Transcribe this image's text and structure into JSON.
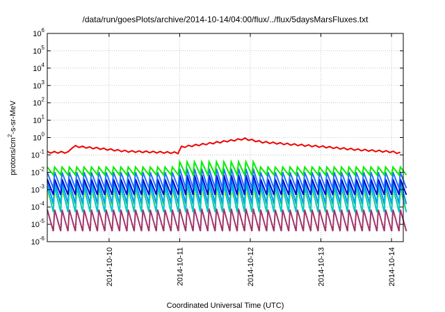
{
  "chart_data": {
    "type": "line",
    "title": "/data/run/goesPlots/archive/2014-10-14/04:00/flux/../flux/5daysMarsFluxes.txt",
    "xlabel": "Coordinated Universal Time (UTC)",
    "ylabel_parts": {
      "pre": "protons/cm",
      "sup": "2",
      "post": "-s-sr-MeV"
    },
    "y_scale": "log",
    "ylim": [
      1e-06,
      1000000.0
    ],
    "y_ticks": [
      {
        "value": 1e-06,
        "base": "10",
        "exp": "-6"
      },
      {
        "value": 1e-05,
        "base": "10",
        "exp": "-5"
      },
      {
        "value": 0.0001,
        "base": "10",
        "exp": "-4"
      },
      {
        "value": 0.001,
        "base": "10",
        "exp": "-3"
      },
      {
        "value": 0.01,
        "base": "10",
        "exp": "-2"
      },
      {
        "value": 0.1,
        "base": "10",
        "exp": "-1"
      },
      {
        "value": 1,
        "base": "10",
        "exp": "0"
      },
      {
        "value": 10,
        "base": "10",
        "exp": "1"
      },
      {
        "value": 100,
        "base": "10",
        "exp": "2"
      },
      {
        "value": 1000,
        "base": "10",
        "exp": "3"
      },
      {
        "value": 10000,
        "base": "10",
        "exp": "4"
      },
      {
        "value": 100000,
        "base": "10",
        "exp": "5"
      },
      {
        "value": 1000000,
        "base": "10",
        "exp": "6"
      }
    ],
    "x_start": "2014-10-09 03:00",
    "x_end": "2014-10-14 04:00",
    "x_ticks": [
      "2014-10-10",
      "2014-10-11",
      "2014-10-12",
      "2014-10-13",
      "2014-10-14"
    ],
    "grid": true,
    "legend": "none",
    "series": [
      {
        "color": "#a0346a",
        "low": 4e-06,
        "high": 7e-05,
        "high_after": 8e-05,
        "sawtooth": true
      },
      {
        "color": "#ffff00",
        "low": 0.00013,
        "high": 0.0006,
        "high_after": 0.0007,
        "sawtooth": true
      },
      {
        "color": "#0090ff",
        "low": 0.00015,
        "high": 0.003,
        "high_after": 0.004,
        "sawtooth": true
      },
      {
        "color": "#00c8c8",
        "low": 5e-05,
        "high": 0.0015,
        "high_after": 0.002,
        "sawtooth": true
      },
      {
        "color": "#0000d0",
        "low": 0.0005,
        "high": 0.004,
        "high_after": 0.007,
        "sawtooth": true
      },
      {
        "color": "#1e6fff",
        "low": 0.0012,
        "high": 0.01,
        "high_after": 0.016,
        "sawtooth": true
      },
      {
        "color": "#00ee00",
        "low": 0.007,
        "high": 0.02,
        "high_after": 0.04,
        "sawtooth": true
      },
      {
        "color": "#ee0000",
        "sawtooth": false,
        "points": [
          [
            "2014-10-09 03:00",
            0.13
          ],
          [
            "2014-10-09 08:00",
            0.16
          ],
          [
            "2014-10-09 11:00",
            0.13
          ],
          [
            "2014-10-09 14:00",
            0.15
          ],
          [
            "2014-10-09 18:00",
            0.12
          ],
          [
            "2014-10-09 21:00",
            0.15
          ],
          [
            "2014-10-10 00:00",
            0.13
          ],
          [
            "2014-10-09 11:00",
            0.13
          ],
          [
            "2014-10-09 12:00",
            0.12
          ]
        ],
        "envelope": [
          [
            "2014-10-09 03:00",
            0.14
          ],
          [
            "2014-10-09 11:00",
            0.14
          ],
          [
            "2014-10-09 11:30",
            0.32
          ],
          [
            "2014-10-09 20:00",
            0.24
          ],
          [
            "2014-10-10 06:00",
            0.16
          ],
          [
            "2014-10-10 18:00",
            0.14
          ],
          [
            "2014-10-11 00:00",
            0.13
          ],
          [
            "2014-10-11 00:30",
            0.28
          ],
          [
            "2014-10-11 12:00",
            0.5
          ],
          [
            "2014-10-11 22:00",
            0.85
          ],
          [
            "2014-10-12 04:00",
            0.55
          ],
          [
            "2014-10-12 14:00",
            0.4
          ],
          [
            "2014-10-13 00:00",
            0.3
          ],
          [
            "2014-10-13 12:00",
            0.2
          ],
          [
            "2014-10-14 00:00",
            0.15
          ],
          [
            "2014-10-14 04:00",
            0.12
          ]
        ]
      }
    ]
  }
}
